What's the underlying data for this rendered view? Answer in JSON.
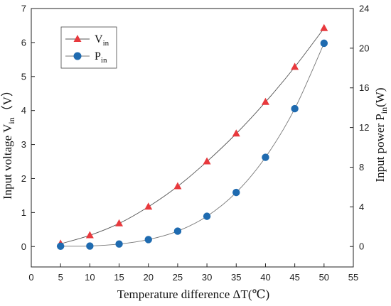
{
  "chart_data": {
    "type": "line",
    "xlabel": "Temperature difference ΔT(℃)",
    "ylabel_left": {
      "main": "Input voltage V",
      "sub": "in",
      "unit": "（V）"
    },
    "ylabel_right": {
      "main": "Input power P",
      "sub": "in",
      "unit": "(W)"
    },
    "xlim": [
      0,
      55
    ],
    "ylim_left": [
      -0.6,
      7
    ],
    "ylim_right": [
      -2.06,
      24
    ],
    "x_ticks": [
      0,
      5,
      10,
      15,
      20,
      25,
      30,
      35,
      40,
      45,
      50,
      55
    ],
    "y_left_ticks": [
      0,
      1,
      2,
      3,
      4,
      5,
      6,
      7
    ],
    "y_right_ticks": [
      0,
      4,
      8,
      12,
      16,
      20,
      24
    ],
    "legend_position": "top-left",
    "grid": false,
    "series": [
      {
        "name": "V",
        "name_sub": "in",
        "axis": "left",
        "marker": "triangle",
        "color": "#e8393d",
        "line_color": "#555555",
        "x": [
          5,
          10,
          15,
          20,
          25,
          30,
          35,
          40,
          45,
          50
        ],
        "values": [
          0.08,
          0.33,
          0.68,
          1.17,
          1.77,
          2.5,
          3.32,
          4.25,
          5.28,
          6.42
        ]
      },
      {
        "name": "P",
        "name_sub": "in",
        "axis": "right",
        "marker": "circle",
        "color": "#1f6bb0",
        "line_color": "#777777",
        "x": [
          5,
          10,
          15,
          20,
          25,
          30,
          35,
          40,
          45,
          50
        ],
        "values": [
          0.03,
          0.05,
          0.25,
          0.7,
          1.55,
          3.05,
          5.45,
          9.0,
          13.9,
          20.5
        ]
      }
    ]
  }
}
